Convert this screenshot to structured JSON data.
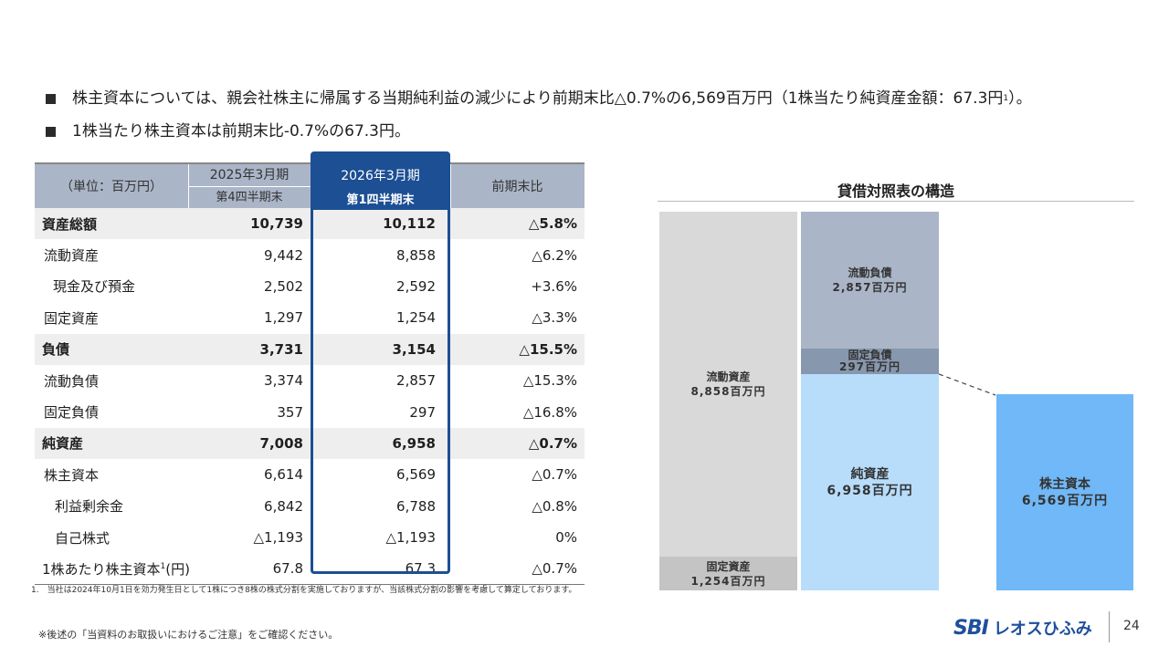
{
  "bullets": [
    {
      "text": "株主資本については、親会社株主に帰属する当期純利益の減少により前期末比△0.7%の6,569百万円（1株当たり純資産金額：67.3円",
      "sup": "1",
      "after": "）。"
    },
    {
      "text": "1株当たり株主資本は前期末比-0.7%の67.3円。",
      "sup": "",
      "after": ""
    }
  ],
  "table": {
    "unit_label": "（単位：百万円）",
    "prev_period": {
      "line1": "2025年3月期",
      "line2": "第4四半期末"
    },
    "cur_period": {
      "line1": "2026年3月期",
      "line2": "第1四半期末"
    },
    "yoy_label": "前期末比",
    "rows": [
      {
        "label": "資産総額",
        "prev": "10,739",
        "cur": "10,112",
        "yoy": "△5.8%"
      },
      {
        "label": "流動資産",
        "prev": "9,442",
        "cur": "8,858",
        "yoy": "△6.2%"
      },
      {
        "label": "現金及び預金",
        "prev": "2,502",
        "cur": "2,592",
        "yoy": "+3.6%"
      },
      {
        "label": "固定資産",
        "prev": "1,297",
        "cur": "1,254",
        "yoy": "△3.3%"
      },
      {
        "label": "負債",
        "prev": "3,731",
        "cur": "3,154",
        "yoy": "△15.5%"
      },
      {
        "label": "流動負債",
        "prev": "3,374",
        "cur": "2,857",
        "yoy": "△15.3%"
      },
      {
        "label": "固定負債",
        "prev": "357",
        "cur": "297",
        "yoy": "△16.8%"
      },
      {
        "label": "純資産",
        "prev": "7,008",
        "cur": "6,958",
        "yoy": "△0.7%"
      },
      {
        "label": "株主資本",
        "prev": "6,614",
        "cur": "6,569",
        "yoy": "△0.7%"
      },
      {
        "label": "利益剰余金",
        "prev": "6,842",
        "cur": "6,788",
        "yoy": "△0.8%"
      },
      {
        "label": "自己株式",
        "prev": "△1,193",
        "cur": "△1,193",
        "yoy": "0%"
      },
      {
        "label": "1株あたり株主資本",
        "label_sup": "1",
        "label_after": "(円)",
        "prev": "67.8",
        "cur": "67.3",
        "yoy": "△0.7%"
      }
    ]
  },
  "footnote": "1.　当社は2024年10月1日を効力発生日として1株につき8株の株式分割を実施しておりますが、当該株式分割の影響を考慮して算定しております。",
  "disclaimer": "※後述の「当資料のお取扱いにおけるご注意」をご確認ください。",
  "balance_chart": {
    "title": "貸借対照表の構造",
    "blocks": {
      "current_assets": {
        "label": "流動資産",
        "value": "8,858百万円",
        "color": "#d9d9d9"
      },
      "fixed_assets": {
        "label": "固定資産",
        "value": "1,254百万円",
        "color": "#c4c4c4"
      },
      "current_liabilities": {
        "label": "流動負債",
        "value": "2,857百万円",
        "color": "#aab5c7"
      },
      "fixed_liabilities": {
        "label": "固定負債",
        "value": "297百万円",
        "color": "#8797ad"
      },
      "net_assets": {
        "label": "純資産",
        "value": "6,958百万円",
        "color": "#b7ddfb"
      },
      "shareholders_equity": {
        "label": "株主資本",
        "value": "6,569百万円",
        "color": "#70b8f7"
      }
    }
  },
  "logo": {
    "mark": "SBI",
    "name": "レオスひふみ"
  },
  "page_number": "24"
}
